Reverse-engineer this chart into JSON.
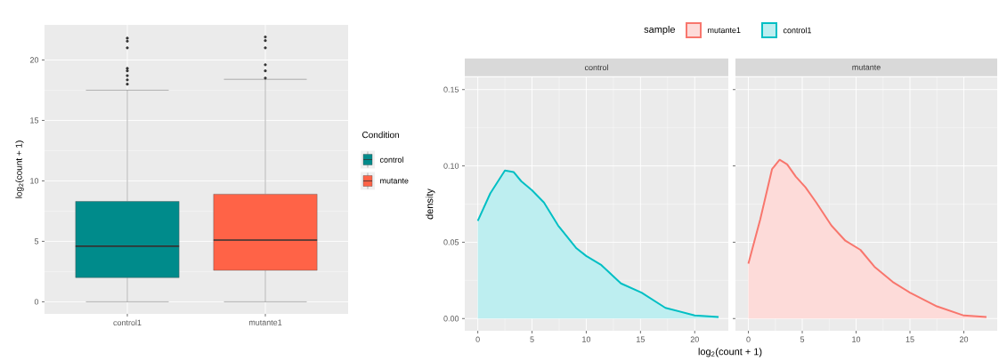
{
  "chart_data": [
    {
      "type": "box",
      "ylabel": "log$_{2}$(count + 1)",
      "categories": [
        "control1",
        "mutante1"
      ],
      "ylim": [
        -1.0,
        22.9
      ],
      "yticks": [
        0,
        5,
        10,
        15,
        20
      ],
      "grid": true,
      "legend": "right",
      "legend_title": "Condition",
      "series": [
        {
          "name": "control",
          "color": "#008b8b",
          "boxes": [
            {
              "low": 0,
              "q1": 2.0,
              "median": 4.6,
              "q3": 8.3,
              "high": 17.5,
              "outliers": [
                21.8,
                21.55,
                21.0,
                19.3,
                19.1,
                18.7,
                18.35,
                18.0
              ]
            },
            null
          ]
        },
        {
          "name": "mutante",
          "color": "#ff6347",
          "boxes": [
            null,
            {
              "low": 0,
              "q1": 2.6,
              "median": 5.1,
              "q3": 8.9,
              "high": 18.4,
              "outliers": [
                21.9,
                21.6,
                21.0,
                19.6,
                19.1,
                18.5
              ]
            }
          ]
        }
      ]
    },
    {
      "type": "area",
      "title": "control",
      "xlabel": "log$_{2}$(count + 1)",
      "ylabel": "density",
      "legend_title": "sample",
      "legend": "top",
      "grid": true,
      "xlim": [
        -1.2,
        23.1
      ],
      "xticks": [
        0,
        5,
        10,
        15,
        20
      ],
      "ylim": [
        -0.008,
        0.158
      ],
      "yticks": [
        {
          "value": 0,
          "label": "0.00"
        },
        {
          "value": 0.05,
          "label": "0.05"
        },
        {
          "value": 0.1,
          "label": "0.10"
        },
        {
          "value": 0.15,
          "label": "0.15"
        }
      ],
      "series": [
        {
          "name": "control1",
          "color": "#00bfc4",
          "x": [
            0,
            1.15,
            2.5,
            3.3,
            4.0,
            5.0,
            6.1,
            7.4,
            9.1,
            10.0,
            11.4,
            13.2,
            15.1,
            17.3,
            20.0,
            22.2
          ],
          "values": [
            0.064,
            0.082,
            0.097,
            0.096,
            0.09,
            0.084,
            0.076,
            0.061,
            0.046,
            0.041,
            0.035,
            0.023,
            0.017,
            0.007,
            0.002,
            0.001
          ]
        }
      ]
    },
    {
      "type": "area",
      "title": "mutante",
      "legend": "top",
      "grid": true,
      "tick_labels": "x",
      "xlim": [
        -1.2,
        23.1
      ],
      "xticks": [
        0,
        5,
        10,
        15,
        20
      ],
      "ylim": [
        -0.008,
        0.158
      ],
      "yticks": [
        {
          "value": 0,
          "label": null
        },
        {
          "value": 0.05,
          "label": null
        },
        {
          "value": 0.1,
          "label": null
        },
        {
          "value": 0.15,
          "label": null
        }
      ],
      "series": [
        {
          "name": "mutante1",
          "color": "#f8766d",
          "x": [
            0,
            1.1,
            2.2,
            2.9,
            3.6,
            4.4,
            5.3,
            6.3,
            7.7,
            9.0,
            10.4,
            11.7,
            13.4,
            15.0,
            17.5,
            20.0,
            22.1
          ],
          "values": [
            0.036,
            0.065,
            0.098,
            0.104,
            0.101,
            0.093,
            0.086,
            0.076,
            0.061,
            0.051,
            0.045,
            0.034,
            0.024,
            0.017,
            0.008,
            0.002,
            0.001
          ]
        }
      ]
    }
  ]
}
